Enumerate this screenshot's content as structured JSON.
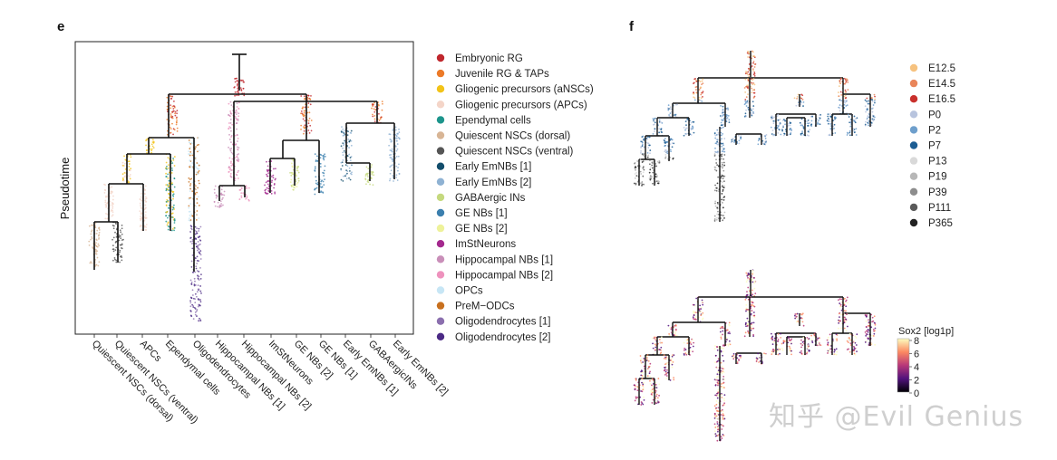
{
  "panels": {
    "e": {
      "letter": "e",
      "ylabel": "Pseudotime",
      "legend": [
        {
          "label": "Embryonic RG",
          "color": "#c0272d"
        },
        {
          "label": "Juvenile RG & TAPs",
          "color": "#ec7a28"
        },
        {
          "label": "Gliogenic precursors (aNSCs)",
          "color": "#f2c318"
        },
        {
          "label": "Gliogenic precursors (APCs)",
          "color": "#f4d5c8"
        },
        {
          "label": "Ependymal cells",
          "color": "#1d958c"
        },
        {
          "label": "Quiescent NSCs (dorsal)",
          "color": "#d8b595"
        },
        {
          "label": "Quiescent NSCs (ventral)",
          "color": "#555555"
        },
        {
          "label": "Early EmNBs [1]",
          "color": "#124d6b"
        },
        {
          "label": "Early EmNBs [2]",
          "color": "#8fb2d3"
        },
        {
          "label": "GABAergic INs",
          "color": "#c5d97e"
        },
        {
          "label": "GE NBs [1]",
          "color": "#3b7fae"
        },
        {
          "label": "GE NBs [2]",
          "color": "#eef29a"
        },
        {
          "label": "ImStNeurons",
          "color": "#a4298e"
        },
        {
          "label": "Hippocampal NBs [1]",
          "color": "#c98fb9"
        },
        {
          "label": "Hippocampal NBs [2]",
          "color": "#ee92bd"
        },
        {
          "label": "OPCs",
          "color": "#c7e6f5"
        },
        {
          "label": "PreM−ODCs",
          "color": "#c8701e"
        },
        {
          "label": "Oligodendrocytes [1]",
          "color": "#8b6fae"
        },
        {
          "label": "Oligodendrocytes [2]",
          "color": "#4b2a85"
        }
      ],
      "xticks": [
        "Quiescent NSCs (dorsal)",
        "Quiescent NSCs (ventral)",
        "APCs",
        "Ependymal cells",
        "Oligodendrocytes",
        "Hippocampal NBs [1]",
        "Hippocampal NBs [2]",
        "ImStNeurons",
        "GE NBs [2]",
        "GE NBs [1]",
        "Early EmNBs [1]",
        "GABAergicINs",
        "Early EmNBs [2]"
      ]
    },
    "f": {
      "letter": "f",
      "legend": [
        {
          "label": "E12.5",
          "color": "#f6c27f"
        },
        {
          "label": "E14.5",
          "color": "#e9855a"
        },
        {
          "label": "E16.5",
          "color": "#c9302c"
        },
        {
          "label": "P0",
          "color": "#b8c4de"
        },
        {
          "label": "P2",
          "color": "#6e9fcc"
        },
        {
          "label": "P7",
          "color": "#1c5d93"
        },
        {
          "label": "P13",
          "color": "#d9d9d9"
        },
        {
          "label": "P19",
          "color": "#b7b7b7"
        },
        {
          "label": "P39",
          "color": "#8d8d8d"
        },
        {
          "label": "P111",
          "color": "#5a5a5a"
        },
        {
          "label": "P365",
          "color": "#222222"
        }
      ],
      "colorbar": {
        "title": "Sox2 [log1p]",
        "ticks": [
          "8",
          "6",
          "4",
          "2",
          "0"
        ],
        "colors": [
          "#fcfdbf",
          "#fc8961",
          "#b73779",
          "#51127c",
          "#000004"
        ]
      }
    }
  },
  "watermark": "知乎 @Evil Genius"
}
